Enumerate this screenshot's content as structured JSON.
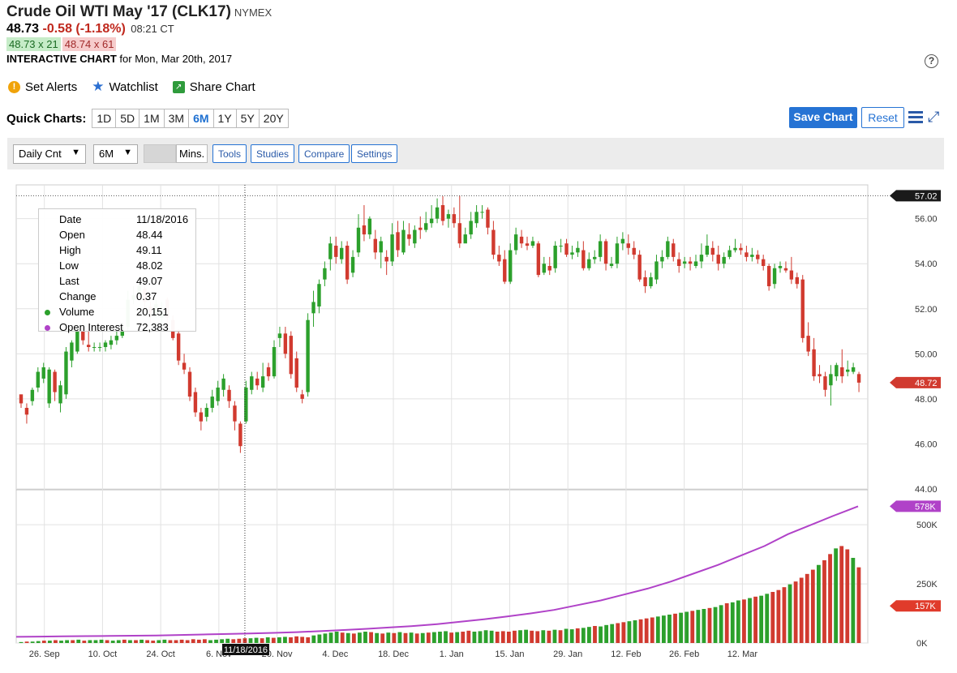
{
  "header": {
    "title": "Crude Oil WTI May '17 (CLK17)",
    "exchange": "NYMEX",
    "last": "48.73",
    "change": "-0.58 (-1.18%)",
    "time": "08:21 CT",
    "bid": "48.73 x 21",
    "ask": "48.74 x 61",
    "interactive_label": "INTERACTIVE CHART",
    "interactive_date": "for Mon, Mar 20th, 2017",
    "help": "?"
  },
  "actions": {
    "alerts": "Set Alerts",
    "watchlist": "Watchlist",
    "share": "Share Chart"
  },
  "quick": {
    "label": "Quick Charts:",
    "items": [
      "1D",
      "5D",
      "1M",
      "3M",
      "6M",
      "1Y",
      "5Y",
      "20Y"
    ],
    "active": "6M",
    "save": "Save Chart",
    "reset": "Reset"
  },
  "toolbar": {
    "period": "Daily Cnt",
    "range": "6M",
    "mins": "Mins.",
    "tools": "Tools",
    "studies": "Studies",
    "compare": "Compare",
    "settings": "Settings"
  },
  "tooltip": {
    "rows": [
      {
        "k": "Date",
        "v": "11/18/2016"
      },
      {
        "k": "Open",
        "v": "48.44"
      },
      {
        "k": "High",
        "v": "49.11"
      },
      {
        "k": "Low",
        "v": "48.02"
      },
      {
        "k": "Last",
        "v": "49.07"
      },
      {
        "k": "Change",
        "v": "0.37"
      },
      {
        "k": "Volume",
        "v": "20,151"
      },
      {
        "k": "Open Interest",
        "v": "72,383"
      }
    ]
  },
  "colors": {
    "up": "#2ca02c",
    "down": "#d13a2f",
    "oi": "#b042c8",
    "volume_tag": "#e03b2b",
    "dark_tag": "#1a1a1a"
  },
  "chart_data": {
    "type": "candlestick",
    "price_axis": {
      "min": 44,
      "max": 57.5,
      "ticks": [
        "56.00",
        "54.00",
        "52.00",
        "50.00",
        "48.00",
        "46.00",
        "44.00"
      ]
    },
    "price_tags": {
      "high": "57.02",
      "last": "48.72"
    },
    "volume_axis": {
      "ticks": [
        "500K",
        "250K",
        "0K"
      ]
    },
    "volume_tags": {
      "oi": "578K",
      "vol": "157K"
    },
    "x_labels": [
      "26. Sep",
      "10. Oct",
      "24. Oct",
      "6. Nov",
      "20. Nov",
      "4. Dec",
      "18. Dec",
      "1. Jan",
      "15. Jan",
      "29. Jan",
      "12. Feb",
      "26. Feb",
      "12. Mar"
    ],
    "cursor_label": "11/18/2016",
    "grid": "on",
    "candles": [
      [
        48.2,
        47.8,
        48.0,
        47.6
      ],
      [
        47.6,
        47.3,
        47.8,
        46.9
      ],
      [
        47.9,
        48.4,
        48.5,
        47.7
      ],
      [
        48.5,
        49.2,
        49.4,
        48.3
      ],
      [
        48.9,
        49.4,
        49.6,
        48.7
      ],
      [
        47.8,
        49.3,
        49.4,
        47.6
      ],
      [
        49.2,
        48.3,
        49.3,
        47.9
      ],
      [
        47.8,
        48.6,
        48.8,
        47.4
      ],
      [
        48.2,
        50.1,
        50.3,
        48.0
      ],
      [
        49.7,
        50.5,
        50.6,
        49.4
      ],
      [
        50.1,
        51.1,
        51.3,
        50.0
      ],
      [
        51.2,
        50.6,
        51.6,
        50.4
      ],
      [
        50.4,
        50.3,
        51.5,
        50.1
      ],
      [
        50.3,
        50.3,
        50.5,
        50.1
      ],
      [
        50.3,
        50.3,
        50.5,
        50.1
      ],
      [
        50.3,
        50.5,
        50.6,
        50.1
      ],
      [
        50.4,
        50.6,
        50.8,
        50.2
      ],
      [
        50.6,
        50.8,
        51.0,
        50.4
      ],
      [
        50.8,
        51.2,
        51.4,
        50.7
      ],
      [
        51.2,
        52.4,
        52.8,
        51.0
      ],
      [
        52.4,
        52.6,
        53.0,
        52.2
      ],
      [
        52.6,
        53.0,
        53.3,
        52.4
      ],
      [
        52.9,
        52.3,
        53.0,
        51.9
      ],
      [
        52.1,
        51.8,
        52.3,
        51.4
      ],
      [
        51.8,
        52.2,
        52.4,
        51.6
      ],
      [
        51.6,
        51.9,
        52.3,
        51.3
      ],
      [
        52.4,
        51.6,
        52.5,
        51.2
      ],
      [
        51.5,
        50.7,
        51.7,
        50.6
      ],
      [
        50.9,
        49.7,
        51.1,
        49.5
      ],
      [
        49.6,
        49.3,
        50.0,
        49.1
      ],
      [
        49.2,
        48.1,
        49.4,
        47.9
      ],
      [
        48.3,
        47.4,
        48.5,
        47.2
      ],
      [
        47.4,
        47.0,
        47.6,
        46.6
      ],
      [
        47.2,
        47.6,
        47.8,
        47.0
      ],
      [
        47.6,
        48.1,
        48.4,
        47.4
      ],
      [
        47.9,
        48.5,
        48.8,
        47.7
      ],
      [
        48.4,
        48.9,
        49.1,
        48.1
      ],
      [
        48.4,
        47.9,
        48.6,
        47.6
      ],
      [
        47.7,
        47.0,
        47.9,
        46.6
      ],
      [
        46.9,
        45.9,
        47.0,
        45.6
      ],
      [
        47.0,
        48.5,
        48.8,
        46.9
      ],
      [
        48.4,
        49.0,
        49.2,
        48.2
      ],
      [
        48.9,
        48.6,
        49.2,
        48.4
      ],
      [
        48.5,
        49.0,
        49.6,
        48.3
      ],
      [
        49.4,
        49.0,
        49.6,
        48.8
      ],
      [
        49.0,
        50.3,
        50.6,
        48.9
      ],
      [
        50.7,
        50.9,
        51.2,
        50.3
      ],
      [
        50.9,
        50.0,
        51.2,
        49.8
      ],
      [
        50.8,
        49.1,
        51.0,
        48.9
      ],
      [
        49.8,
        48.5,
        50.1,
        48.3
      ],
      [
        48.2,
        48.0,
        48.4,
        47.8
      ],
      [
        48.3,
        51.5,
        51.8,
        48.1
      ],
      [
        51.8,
        52.3,
        52.8,
        51.2
      ],
      [
        52.1,
        53.1,
        53.3,
        51.8
      ],
      [
        53.3,
        53.8,
        54.1,
        53.0
      ],
      [
        54.2,
        54.9,
        55.2,
        53.7
      ],
      [
        54.8,
        54.3,
        55.2,
        54.0
      ],
      [
        54.2,
        54.7,
        55.0,
        54.0
      ],
      [
        54.8,
        53.3,
        55.0,
        53.1
      ],
      [
        53.6,
        54.3,
        54.6,
        53.4
      ],
      [
        54.5,
        55.6,
        56.2,
        54.3
      ],
      [
        55.7,
        55.3,
        56.6,
        55.0
      ],
      [
        55.3,
        56.0,
        56.1,
        55.1
      ],
      [
        55.1,
        54.5,
        55.5,
        54.2
      ],
      [
        54.5,
        55.0,
        55.2,
        53.8
      ],
      [
        54.3,
        54.1,
        54.6,
        53.5
      ],
      [
        54.1,
        55.3,
        55.8,
        53.9
      ],
      [
        55.4,
        54.6,
        55.9,
        54.3
      ],
      [
        54.5,
        55.5,
        55.9,
        54.4
      ],
      [
        55.3,
        55.1,
        55.8,
        54.8
      ],
      [
        54.9,
        55.5,
        55.7,
        54.7
      ],
      [
        55.6,
        55.5,
        56.1,
        55.1
      ],
      [
        55.5,
        55.8,
        56.3,
        55.4
      ],
      [
        55.8,
        56.0,
        56.6,
        55.6
      ],
      [
        56.0,
        56.5,
        56.9,
        55.8
      ],
      [
        56.6,
        55.9,
        57.0,
        55.7
      ],
      [
        56.0,
        56.2,
        56.4,
        55.6
      ],
      [
        56.2,
        55.8,
        56.5,
        55.6
      ],
      [
        55.8,
        54.9,
        57.02,
        54.7
      ],
      [
        54.9,
        55.3,
        55.6,
        55.0
      ],
      [
        55.3,
        55.9,
        56.3,
        55.1
      ],
      [
        55.8,
        56.3,
        56.6,
        55.6
      ],
      [
        56.3,
        56.3,
        56.6,
        56.0
      ],
      [
        56.4,
        55.6,
        56.5,
        55.3
      ],
      [
        55.5,
        54.4,
        55.9,
        54.2
      ],
      [
        54.4,
        54.1,
        54.8,
        53.9
      ],
      [
        54.2,
        53.2,
        54.6,
        53.1
      ],
      [
        53.2,
        54.6,
        54.9,
        53.1
      ],
      [
        54.6,
        55.3,
        55.6,
        54.4
      ],
      [
        55.2,
        54.9,
        55.5,
        54.7
      ],
      [
        54.9,
        54.8,
        55.2,
        54.6
      ],
      [
        54.8,
        55.0,
        55.2,
        54.7
      ],
      [
        54.9,
        53.5,
        55.0,
        53.4
      ],
      [
        53.6,
        54.0,
        54.3,
        53.5
      ],
      [
        53.9,
        53.7,
        54.3,
        53.5
      ],
      [
        53.8,
        54.8,
        55.0,
        53.6
      ],
      [
        54.8,
        54.8,
        55.1,
        54.5
      ],
      [
        54.9,
        54.4,
        55.1,
        54.3
      ],
      [
        54.4,
        54.5,
        54.8,
        54.2
      ],
      [
        54.5,
        54.7,
        55.0,
        54.3
      ],
      [
        54.6,
        53.8,
        55.0,
        53.7
      ],
      [
        53.8,
        54.2,
        54.5,
        53.7
      ],
      [
        54.2,
        54.3,
        54.6,
        54.0
      ],
      [
        54.3,
        55.0,
        55.3,
        54.1
      ],
      [
        55.0,
        54.0,
        55.1,
        53.7
      ],
      [
        53.9,
        54.0,
        54.3,
        53.8
      ],
      [
        54.0,
        54.9,
        55.2,
        53.8
      ],
      [
        54.9,
        55.1,
        55.4,
        54.6
      ],
      [
        54.9,
        54.7,
        55.3,
        54.4
      ],
      [
        54.7,
        54.4,
        55.0,
        54.2
      ],
      [
        54.4,
        53.3,
        54.6,
        53.2
      ],
      [
        53.4,
        53.0,
        53.7,
        52.7
      ],
      [
        53.0,
        53.4,
        53.6,
        52.9
      ],
      [
        53.3,
        54.1,
        54.4,
        53.1
      ],
      [
        54.1,
        54.3,
        54.6,
        53.8
      ],
      [
        54.3,
        55.0,
        55.2,
        54.2
      ],
      [
        54.9,
        54.3,
        55.1,
        54.1
      ],
      [
        54.2,
        53.9,
        54.5,
        53.6
      ],
      [
        54.0,
        54.1,
        54.3,
        53.8
      ],
      [
        54.1,
        54.0,
        54.3,
        53.7
      ],
      [
        53.9,
        54.1,
        54.4,
        53.8
      ],
      [
        54.1,
        54.4,
        54.9,
        53.8
      ],
      [
        54.4,
        54.8,
        55.3,
        54.3
      ],
      [
        54.7,
        54.4,
        55.0,
        54.1
      ],
      [
        54.4,
        54.0,
        54.8,
        53.7
      ],
      [
        54.0,
        54.3,
        54.5,
        53.8
      ],
      [
        54.3,
        54.6,
        54.8,
        54.2
      ],
      [
        54.6,
        54.7,
        55.1,
        54.5
      ],
      [
        54.7,
        54.6,
        54.9,
        54.4
      ],
      [
        54.5,
        54.3,
        54.8,
        54.1
      ],
      [
        54.3,
        54.4,
        54.7,
        54.1
      ],
      [
        54.4,
        54.2,
        54.6,
        54.0
      ],
      [
        54.2,
        53.9,
        54.4,
        53.7
      ],
      [
        53.9,
        53.0,
        54.0,
        52.8
      ],
      [
        53.1,
        53.8,
        54.0,
        52.9
      ],
      [
        53.8,
        53.9,
        54.1,
        53.6
      ],
      [
        53.8,
        53.7,
        54.1,
        53.6
      ],
      [
        53.7,
        53.3,
        54.3,
        53.1
      ],
      [
        53.4,
        53.1,
        53.6,
        52.9
      ],
      [
        53.3,
        50.7,
        53.5,
        50.5
      ],
      [
        50.8,
        50.1,
        51.4,
        49.9
      ],
      [
        50.2,
        49.0,
        50.7,
        48.8
      ],
      [
        49.1,
        49.0,
        49.5,
        48.7
      ],
      [
        49.0,
        48.4,
        49.2,
        48.1
      ],
      [
        48.6,
        49.1,
        49.5,
        47.7
      ],
      [
        49.0,
        49.5,
        49.6,
        48.8
      ],
      [
        49.4,
        49.0,
        50.2,
        48.7
      ],
      [
        49.2,
        49.3,
        49.7,
        49.0
      ],
      [
        49.2,
        49.4,
        49.6,
        49.1
      ],
      [
        49.1,
        48.72,
        49.2,
        48.3
      ]
    ],
    "volume": [
      [
        2,
        1
      ],
      [
        3,
        0
      ],
      [
        3,
        1
      ],
      [
        4,
        1
      ],
      [
        5,
        0
      ],
      [
        5,
        1
      ],
      [
        6,
        0
      ],
      [
        5,
        1
      ],
      [
        6,
        1
      ],
      [
        6,
        0
      ],
      [
        7,
        1
      ],
      [
        5,
        0
      ],
      [
        6,
        1
      ],
      [
        6,
        1
      ],
      [
        7,
        1
      ],
      [
        6,
        0
      ],
      [
        5,
        1
      ],
      [
        6,
        1
      ],
      [
        7,
        0
      ],
      [
        6,
        1
      ],
      [
        6,
        0
      ],
      [
        7,
        1
      ],
      [
        6,
        0
      ],
      [
        5,
        0
      ],
      [
        6,
        1
      ],
      [
        7,
        1
      ],
      [
        6,
        0
      ],
      [
        6,
        0
      ],
      [
        7,
        0
      ],
      [
        6,
        0
      ],
      [
        8,
        0
      ],
      [
        7,
        0
      ],
      [
        8,
        0
      ],
      [
        6,
        1
      ],
      [
        7,
        1
      ],
      [
        8,
        1
      ],
      [
        9,
        1
      ],
      [
        8,
        0
      ],
      [
        9,
        0
      ],
      [
        10,
        0
      ],
      [
        10,
        1
      ],
      [
        11,
        1
      ],
      [
        10,
        0
      ],
      [
        12,
        1
      ],
      [
        11,
        0
      ],
      [
        12,
        1
      ],
      [
        13,
        1
      ],
      [
        12,
        0
      ],
      [
        14,
        0
      ],
      [
        13,
        0
      ],
      [
        12,
        0
      ],
      [
        16,
        1
      ],
      [
        18,
        1
      ],
      [
        20,
        1
      ],
      [
        22,
        1
      ],
      [
        24,
        1
      ],
      [
        22,
        0
      ],
      [
        21,
        1
      ],
      [
        20,
        0
      ],
      [
        22,
        1
      ],
      [
        24,
        1
      ],
      [
        23,
        0
      ],
      [
        21,
        1
      ],
      [
        20,
        0
      ],
      [
        22,
        1
      ],
      [
        21,
        0
      ],
      [
        23,
        1
      ],
      [
        21,
        0
      ],
      [
        22,
        1
      ],
      [
        20,
        0
      ],
      [
        21,
        1
      ],
      [
        22,
        0
      ],
      [
        23,
        1
      ],
      [
        24,
        1
      ],
      [
        25,
        1
      ],
      [
        22,
        0
      ],
      [
        23,
        1
      ],
      [
        24,
        0
      ],
      [
        26,
        0
      ],
      [
        24,
        1
      ],
      [
        25,
        1
      ],
      [
        27,
        1
      ],
      [
        26,
        1
      ],
      [
        24,
        0
      ],
      [
        25,
        0
      ],
      [
        24,
        0
      ],
      [
        26,
        0
      ],
      [
        27,
        1
      ],
      [
        28,
        1
      ],
      [
        26,
        0
      ],
      [
        25,
        0
      ],
      [
        27,
        1
      ],
      [
        26,
        0
      ],
      [
        28,
        1
      ],
      [
        27,
        0
      ],
      [
        30,
        1
      ],
      [
        29,
        1
      ],
      [
        31,
        0
      ],
      [
        32,
        1
      ],
      [
        34,
        1
      ],
      [
        36,
        0
      ],
      [
        35,
        1
      ],
      [
        38,
        1
      ],
      [
        40,
        1
      ],
      [
        42,
        0
      ],
      [
        44,
        0
      ],
      [
        46,
        1
      ],
      [
        48,
        1
      ],
      [
        50,
        0
      ],
      [
        52,
        0
      ],
      [
        54,
        0
      ],
      [
        56,
        1
      ],
      [
        58,
        1
      ],
      [
        60,
        1
      ],
      [
        62,
        0
      ],
      [
        64,
        1
      ],
      [
        66,
        1
      ],
      [
        68,
        0
      ],
      [
        70,
        1
      ],
      [
        72,
        1
      ],
      [
        74,
        0
      ],
      [
        76,
        1
      ],
      [
        80,
        1
      ],
      [
        84,
        0
      ],
      [
        86,
        1
      ],
      [
        90,
        1
      ],
      [
        92,
        0
      ],
      [
        95,
        1
      ],
      [
        98,
        0
      ],
      [
        100,
        1
      ],
      [
        104,
        1
      ],
      [
        108,
        0
      ],
      [
        112,
        0
      ],
      [
        118,
        0
      ],
      [
        124,
        1
      ],
      [
        130,
        0
      ],
      [
        138,
        0
      ],
      [
        146,
        0
      ],
      [
        155,
        0
      ],
      [
        165,
        1
      ],
      [
        175,
        0
      ],
      [
        188,
        0
      ],
      [
        200,
        1
      ],
      [
        205,
        0
      ],
      [
        198,
        0
      ],
      [
        180,
        1
      ],
      [
        160,
        0
      ]
    ],
    "open_interest": [
      26,
      27,
      28,
      29,
      30,
      31,
      32,
      34,
      36,
      38,
      40,
      43,
      46,
      50,
      55,
      60,
      66,
      72,
      80,
      90,
      100,
      112,
      125,
      140,
      160,
      180,
      205,
      230,
      260,
      295,
      330,
      370,
      410,
      460,
      500,
      540,
      578
    ]
  }
}
